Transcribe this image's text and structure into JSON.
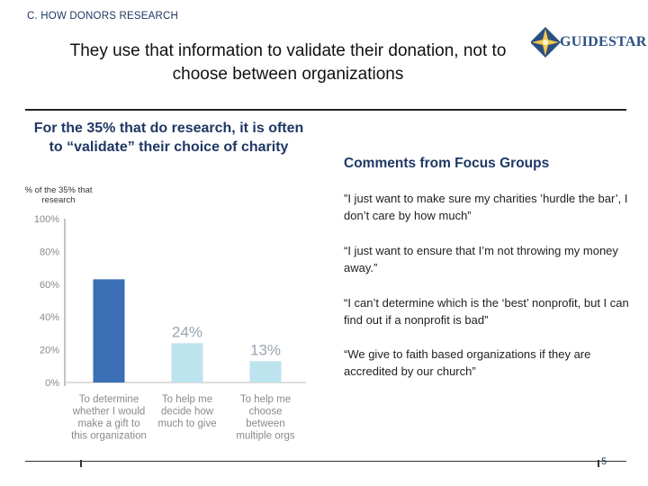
{
  "header": {
    "section_label": "C. HOW DONORS RESEARCH",
    "title_line1": "They use that information to validate their donation, not to",
    "title_line2": "choose between organizations",
    "logo_text": "GUIDESTAR"
  },
  "chart_heading": "For the 35% that do research, it is often to “validate” their choice of charity",
  "comments_heading": "Comments from Focus Groups",
  "comments": [
    "”I just want to make sure my charities ’hurdle the bar’, I don’t care by how much”",
    "“I just want to ensure that I’m not throwing my money away.”",
    "“I can’t determine which is the ‘best’ nonprofit, but I can find out if a nonprofit is bad”",
    "“We give to faith based organizations if they are accredited by our church”"
  ],
  "page_number": "5",
  "chart_data": {
    "type": "bar",
    "title": "",
    "ylabel_lines": [
      "% of the 35% that",
      "research"
    ],
    "xlabel": "",
    "ylim": [
      0,
      100
    ],
    "yticks": [
      0,
      20,
      40,
      60,
      80,
      100
    ],
    "ytick_labels": [
      "0%",
      "20%",
      "40%",
      "60%",
      "80%",
      "100%"
    ],
    "grid": false,
    "categories": [
      [
        "To determine",
        "whether I would",
        "make a gift to",
        "this organization"
      ],
      [
        "To help me",
        "decide how",
        "much to give"
      ],
      [
        "To help me",
        "choose",
        "between",
        "multiple orgs"
      ]
    ],
    "values": [
      63,
      24,
      13
    ],
    "value_labels": [
      "63%",
      "24%",
      "13%"
    ],
    "colors": [
      "#3a6fb5",
      "#bde3ef",
      "#bde3ef"
    ],
    "label_colors": [
      "#ffffff",
      "#9aa5b1",
      "#9aa5b1"
    ]
  }
}
